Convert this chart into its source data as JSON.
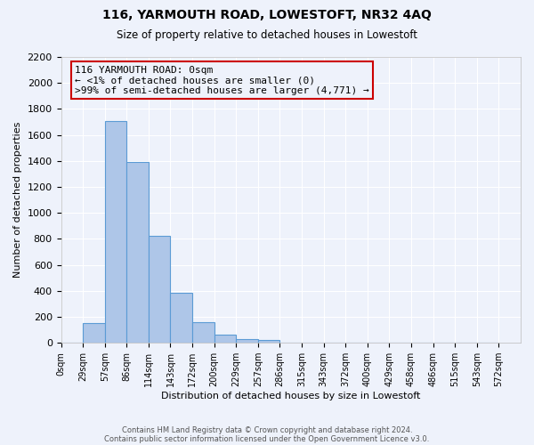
{
  "title": "116, YARMOUTH ROAD, LOWESTOFT, NR32 4AQ",
  "subtitle": "Size of property relative to detached houses in Lowestoft",
  "xlabel": "Distribution of detached houses by size in Lowestoft",
  "ylabel": "Number of detached properties",
  "bar_values": [
    0,
    155,
    1710,
    1390,
    820,
    385,
    160,
    65,
    30,
    20,
    0,
    0,
    0,
    0,
    0,
    0,
    0,
    0,
    0,
    0
  ],
  "bin_labels": [
    "0sqm",
    "29sqm",
    "57sqm",
    "86sqm",
    "114sqm",
    "143sqm",
    "172sqm",
    "200sqm",
    "229sqm",
    "257sqm",
    "286sqm",
    "315sqm",
    "343sqm",
    "372sqm",
    "400sqm",
    "429sqm",
    "458sqm",
    "486sqm",
    "515sqm",
    "543sqm",
    "572sqm"
  ],
  "bar_color": "#aec6e8",
  "bar_edge_color": "#5b9bd5",
  "ylim": [
    0,
    2200
  ],
  "yticks": [
    0,
    200,
    400,
    600,
    800,
    1000,
    1200,
    1400,
    1600,
    1800,
    2000,
    2200
  ],
  "annotation_line1": "116 YARMOUTH ROAD: 0sqm",
  "annotation_line2": "← <1% of detached houses are smaller (0)",
  "annotation_line3": ">99% of semi-detached houses are larger (4,771) →",
  "annotation_box_edge_color": "#cc0000",
  "background_color": "#eef2fb",
  "grid_color": "#ffffff",
  "footer_line1": "Contains HM Land Registry data © Crown copyright and database right 2024.",
  "footer_line2": "Contains public sector information licensed under the Open Government Licence v3.0."
}
